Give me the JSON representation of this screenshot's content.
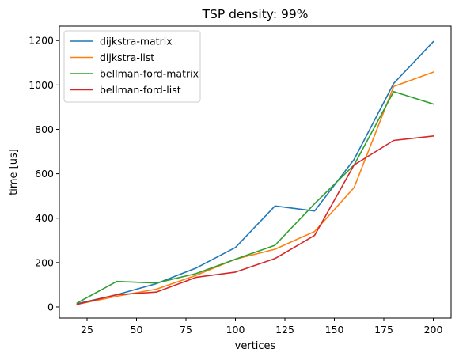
{
  "chart_data": {
    "type": "line",
    "title": "TSP density: 99%",
    "xlabel": "vertices",
    "ylabel": "time [us]",
    "xlim": [
      11,
      209
    ],
    "ylim": [
      -50,
      1265
    ],
    "x_ticks": [
      25,
      50,
      75,
      100,
      125,
      150,
      175,
      200
    ],
    "y_ticks": [
      0,
      200,
      400,
      600,
      800,
      1000,
      1200
    ],
    "x": [
      20,
      40,
      60,
      80,
      100,
      120,
      140,
      160,
      180,
      200
    ],
    "grid": false,
    "legend_position": "top-left",
    "series": [
      {
        "name": "dijkstra-matrix",
        "color": "#1f77b4",
        "values": [
          15,
          55,
          105,
          175,
          268,
          455,
          432,
          665,
          1007,
          1195
        ]
      },
      {
        "name": "dijkstra-list",
        "color": "#ff7f0e",
        "values": [
          12,
          48,
          80,
          142,
          215,
          260,
          340,
          538,
          993,
          1058
        ]
      },
      {
        "name": "bellman-ford-matrix",
        "color": "#2ca02c",
        "values": [
          18,
          115,
          108,
          150,
          215,
          278,
          465,
          640,
          970,
          914
        ]
      },
      {
        "name": "bellman-ford-list",
        "color": "#d62728",
        "values": [
          12,
          55,
          67,
          133,
          157,
          218,
          322,
          640,
          750,
          770
        ]
      }
    ]
  }
}
